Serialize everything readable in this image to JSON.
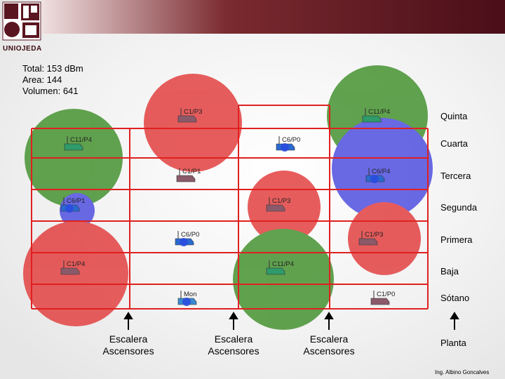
{
  "logo": {
    "text": "UNIOJEDA"
  },
  "stats": {
    "total": "Total: 153 dBm",
    "area": "Area: 144",
    "volume": "Volumen: 641"
  },
  "floors": [
    "Quinta",
    "Cuarta",
    "Tercera",
    "Segunda",
    "Primera",
    "Baja",
    "Sótano",
    "Planta"
  ],
  "stairs": [
    {
      "line1": "Escalera",
      "line2": "Ascensores"
    },
    {
      "line1": "Escalera",
      "line2": "Ascensores"
    },
    {
      "line1": "Escalera",
      "line2": "Ascensores"
    }
  ],
  "access_points": [
    {
      "label": "C1/P3",
      "type": "C1",
      "color": "red"
    },
    {
      "label": "C11/P4",
      "type": "C11",
      "color": "green"
    },
    {
      "label": "C11/P4",
      "type": "C11",
      "color": "green"
    },
    {
      "label": "C6/P0",
      "type": "C6",
      "color": "blue"
    },
    {
      "label": "C1/P1",
      "type": "C1",
      "color": "red"
    },
    {
      "label": "C6/P4",
      "type": "C6",
      "color": "blue"
    },
    {
      "label": "C6/P1",
      "type": "C6",
      "color": "blue"
    },
    {
      "label": "C1/P3",
      "type": "C1",
      "color": "red"
    },
    {
      "label": "C6/P0",
      "type": "C6",
      "color": "blue"
    },
    {
      "label": "C1/P3",
      "type": "C1",
      "color": "red"
    },
    {
      "label": "C1/P4",
      "type": "C1",
      "color": "red"
    },
    {
      "label": "C11/P4",
      "type": "C11",
      "color": "green"
    },
    {
      "label": "Mon",
      "type": "Mon",
      "color": "none"
    },
    {
      "label": "C1/P0",
      "type": "C1",
      "color": "red"
    }
  ],
  "credit": "Ing. Albino Goncalves",
  "colors": {
    "red": "#e23a3a",
    "green": "#3f8f2a",
    "blue": "#4a4ae0",
    "grid": "#e02020",
    "logo": "#5a1620"
  }
}
